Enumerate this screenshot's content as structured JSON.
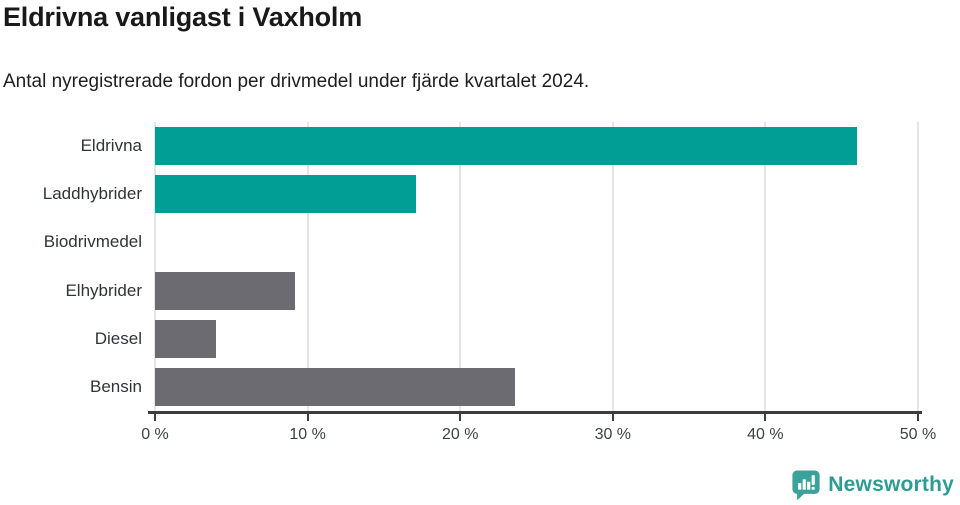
{
  "title": "Eldrivna vanligast i Vaxholm",
  "subtitle": "Antal nyregistrerade fordon per drivmedel under fjärde kvartalet 2024.",
  "chart_data": {
    "type": "bar",
    "orientation": "horizontal",
    "title": "Eldrivna vanligast i Vaxholm",
    "subtitle": "Antal nyregistrerade fordon per drivmedel under fjärde kvartalet 2024.",
    "categories": [
      "Eldrivna",
      "Laddhybrider",
      "Biodrivmedel",
      "Elhybrider",
      "Diesel",
      "Bensin"
    ],
    "values": [
      46,
      17.1,
      0,
      9.2,
      4,
      23.6
    ],
    "unit": "%",
    "xlim": [
      0,
      50
    ],
    "x_ticks": [
      "0 %",
      "10 %",
      "20 %",
      "30 %",
      "40 %",
      "50 %"
    ],
    "x_tick_values": [
      0,
      10,
      20,
      30,
      40,
      50
    ],
    "grid": true,
    "legend": "none",
    "bar_colors": [
      "#009E95",
      "#009E95",
      "#009E95",
      "#6B6B71",
      "#6B6B71",
      "#6B6B71"
    ],
    "colors": {
      "highlight": "#009E95",
      "base": "#6B6B71",
      "gridline": "#e4e4e4",
      "axis": "#3d3d3d"
    }
  },
  "branding": {
    "logo_text": "Newsworthy",
    "logo_color": "#2e9b95",
    "logo_icon": "bar-chart-speech-bubble"
  }
}
